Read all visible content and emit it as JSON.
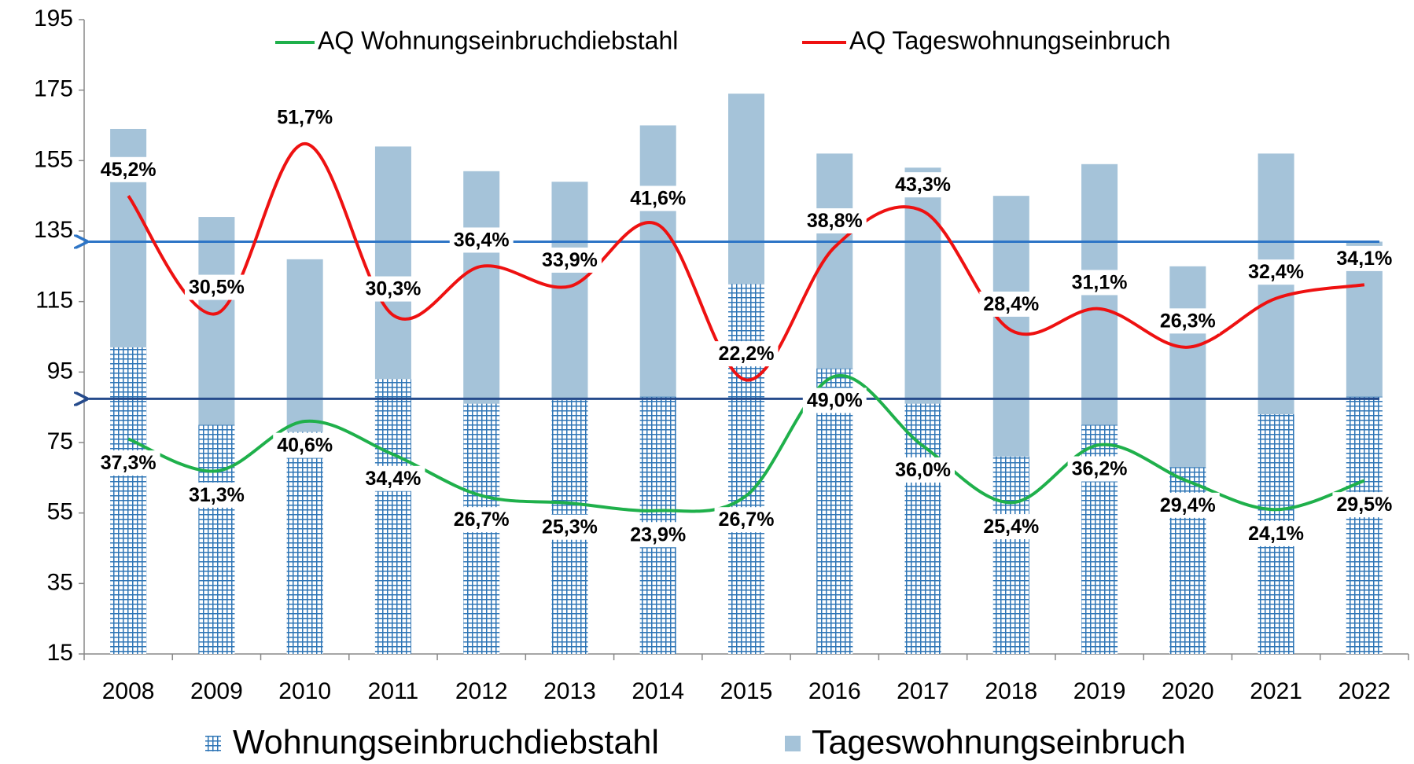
{
  "chart_data": {
    "type": "bar_line",
    "categories": [
      "2008",
      "2009",
      "2010",
      "2011",
      "2012",
      "2013",
      "2014",
      "2015",
      "2016",
      "2017",
      "2018",
      "2019",
      "2020",
      "2021",
      "2022"
    ],
    "ylim": [
      15,
      195
    ],
    "yticks": [
      15,
      35,
      55,
      75,
      95,
      115,
      135,
      155,
      175,
      195
    ],
    "y2lim": [
      -12,
      67.2
    ],
    "y3lim": [
      -2.9,
      115.7
    ],
    "bars": [
      {
        "name": "Wohnungseinbruchdiebstahl",
        "color": "#2e75b6",
        "pattern": "grid",
        "values": [
          102,
          80,
          78,
          93,
          86,
          87,
          88,
          120,
          96,
          86,
          71,
          80,
          68,
          83,
          88
        ]
      },
      {
        "name": "Tageswohnungseinbruch",
        "color": "#a5c3d9",
        "values": [
          164,
          139,
          127,
          159,
          152,
          149,
          165,
          174,
          157,
          153,
          145,
          154,
          125,
          157,
          132
        ]
      }
    ],
    "series": [
      {
        "name": "AQ Wohnungseinbruchdiebstahl",
        "color": "#1fb04b",
        "axis": "y3",
        "values": [
          37.3,
          31.3,
          40.6,
          34.4,
          26.7,
          25.3,
          23.9,
          26.7,
          49.0,
          36.0,
          25.4,
          36.2,
          29.4,
          24.1,
          29.5
        ],
        "value_labels": [
          "37,3%",
          "31,3%",
          "40,6%",
          "34,4%",
          "26,7%",
          "25,3%",
          "23,9%",
          "26,7%",
          "49,0%",
          "36,0%",
          "25,4%",
          "36,2%",
          "29,4%",
          "24,1%",
          "29,5%"
        ]
      },
      {
        "name": "AQ Tageswohnungseinbruch",
        "color": "#ee1111",
        "axis": "y2",
        "values": [
          45.2,
          30.5,
          51.7,
          30.3,
          36.4,
          33.9,
          41.6,
          22.2,
          38.8,
          43.3,
          28.4,
          31.1,
          26.3,
          32.4,
          34.1
        ],
        "value_labels": [
          "45,2%",
          "30,5%",
          "51,7%",
          "30,3%",
          "36,4%",
          "33,9%",
          "41,6%",
          "22,2%",
          "38,8%",
          "43,3%",
          "28,4%",
          "31,1%",
          "26,3%",
          "32,4%",
          "34,1%"
        ]
      }
    ],
    "reference_lines": [
      {
        "value": 132,
        "color": "#2e75c6"
      },
      {
        "value": 87.4,
        "color": "#264b8c"
      }
    ]
  }
}
